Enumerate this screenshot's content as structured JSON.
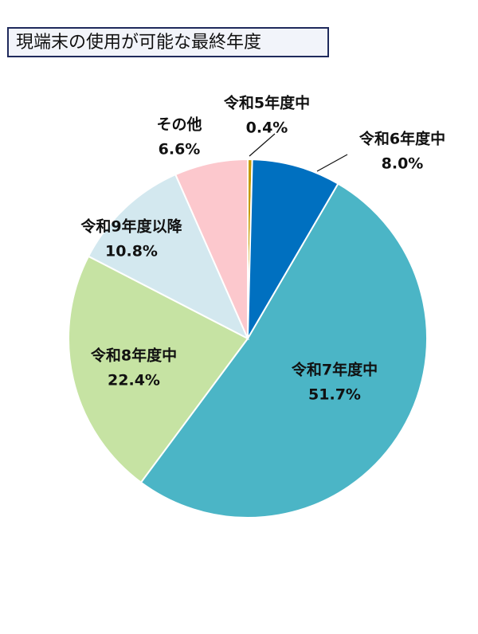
{
  "chart_data": {
    "type": "pie",
    "title": "現端末の使用が可能な最終年度",
    "categories": [
      "令和5年度中",
      "令和6年度中",
      "令和7年度中",
      "令和8年度中",
      "令和9年度以降",
      "その他"
    ],
    "values": [
      0.4,
      8.0,
      51.7,
      22.4,
      10.8,
      6.6
    ],
    "value_labels": [
      "0.4%",
      "8.0%",
      "51.7%",
      "22.4%",
      "10.8%",
      "6.6%"
    ],
    "colors": [
      "#c49a00",
      "#0070c0",
      "#4bb5c6",
      "#c6e3a3",
      "#d3e8ef",
      "#fcc8cd"
    ]
  }
}
